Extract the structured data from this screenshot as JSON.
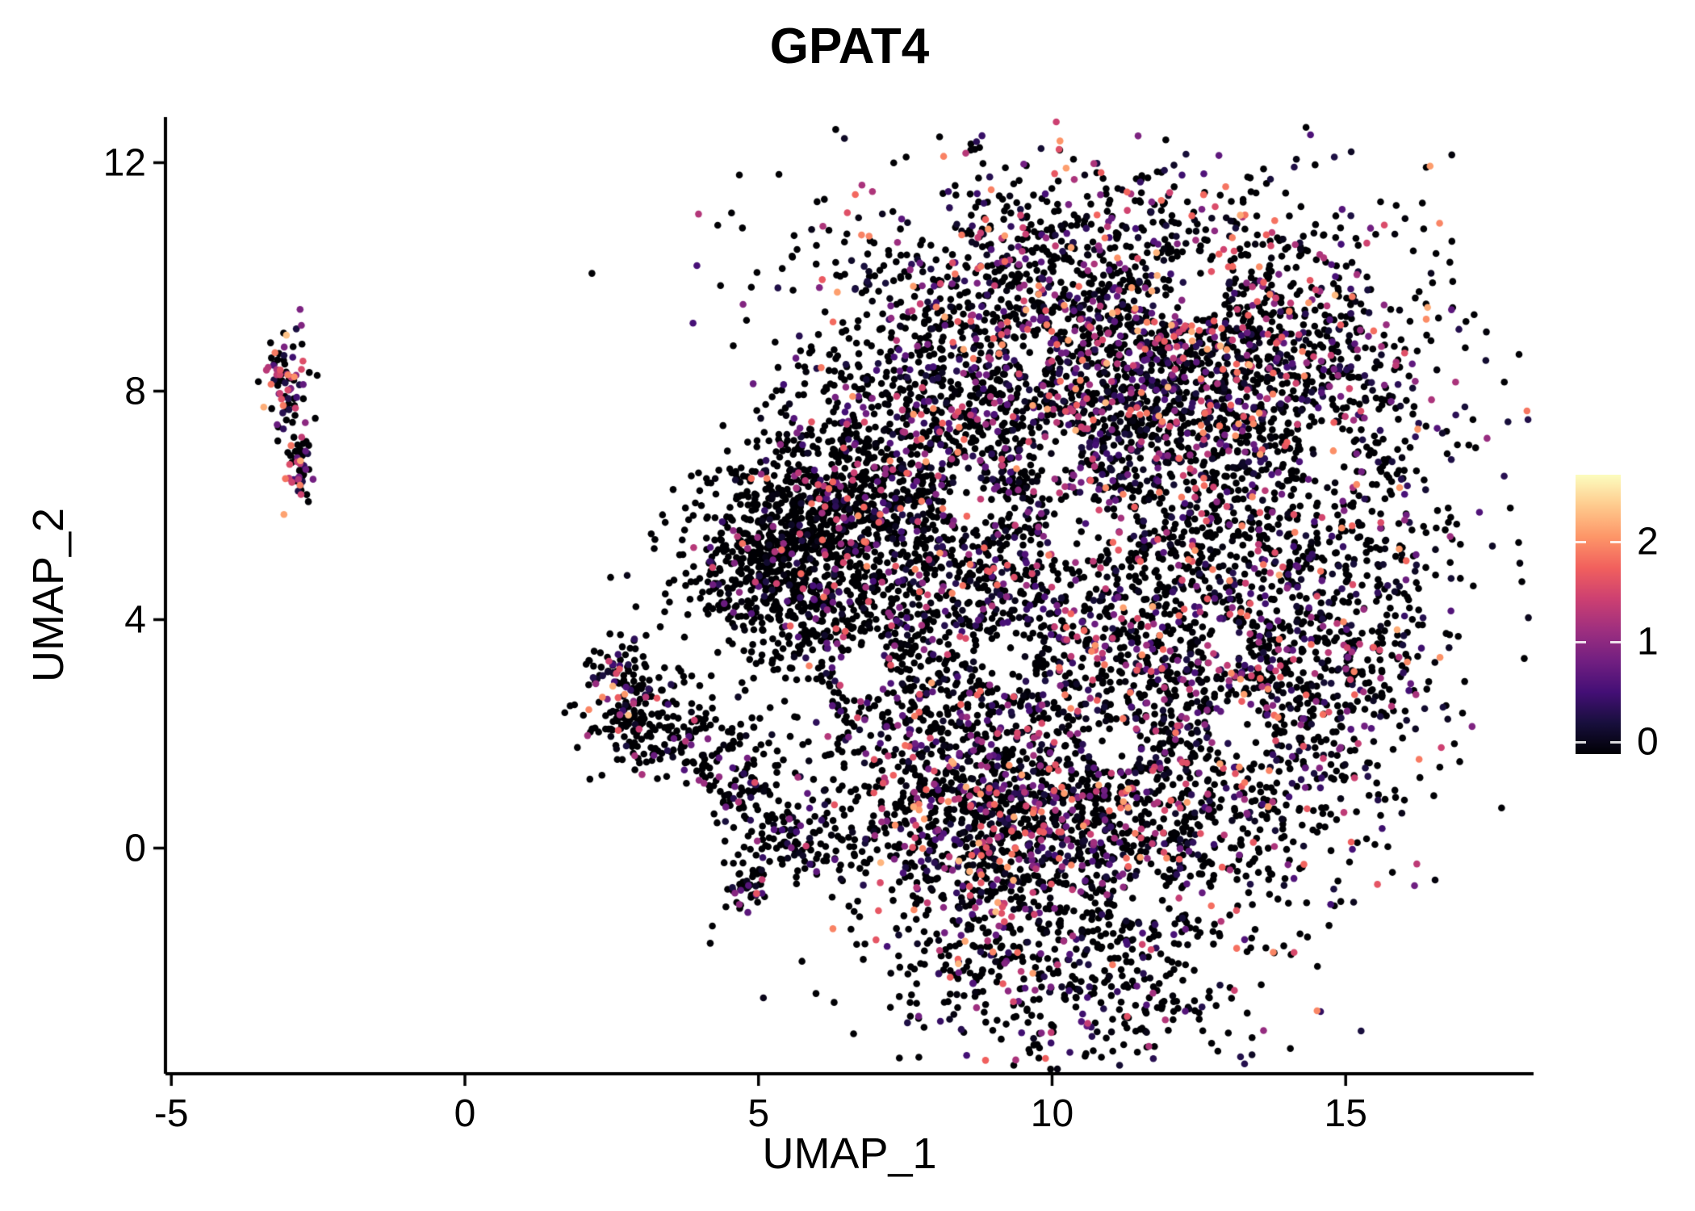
{
  "figure": {
    "background": "#ffffff",
    "axis_color": "#000000",
    "text_color": "#000000"
  },
  "chart_data": {
    "type": "scatter",
    "title": "GPAT4",
    "xlabel": "UMAP_1",
    "ylabel": "UMAP_2",
    "xlim": [
      -5.1,
      18.2
    ],
    "ylim": [
      -3.95,
      12.8
    ],
    "x_ticks": [
      -5,
      0,
      5,
      10,
      15
    ],
    "y_ticks": [
      0,
      4,
      8,
      12
    ],
    "grid": false,
    "point_radius": 4.3,
    "seed": 20240613,
    "colormap": {
      "name": "magma",
      "colors": [
        "#000004",
        "#180f3d",
        "#440f76",
        "#721f81",
        "#9e2f7f",
        "#cd4071",
        "#f1605d",
        "#fd9668",
        "#feca8d",
        "#fcfdbf"
      ]
    },
    "legend": {
      "position": "right",
      "ticks": [
        0,
        1,
        2
      ],
      "bar_vmin": -0.12,
      "bar_vmax": 2.67,
      "value_max": 2.67
    },
    "clusters": [
      {
        "name": "left-small-cluster",
        "blobs": [
          {
            "cx": -3.05,
            "cy": 8.15,
            "sx": 0.17,
            "sy": 0.42,
            "n": 80,
            "pnz": 0.5,
            "vmin": 0.3,
            "vmax": 2.4,
            "vpow": 1.4
          },
          {
            "cx": -2.82,
            "cy": 6.65,
            "sx": 0.12,
            "sy": 0.32,
            "n": 50,
            "pnz": 0.5,
            "vmin": 0.3,
            "vmax": 2.2,
            "vpow": 1.5
          }
        ]
      },
      {
        "name": "lower-left-cluster",
        "blobs": [
          {
            "cx": 2.75,
            "cy": 2.65,
            "sx": 0.42,
            "sy": 0.55,
            "n": 180,
            "pnz": 0.3,
            "vmin": 0,
            "vmax": 2.3,
            "vpow": 2.2
          },
          {
            "cx": 3.45,
            "cy": 1.9,
            "sx": 0.5,
            "sy": 0.4,
            "n": 80,
            "pnz": 0.25,
            "vmin": 0,
            "vmax": 1.8,
            "vpow": 2.4
          },
          {
            "cx": 4.35,
            "cy": 1.95,
            "sx": 0.6,
            "sy": 0.28,
            "n": 40,
            "pnz": 0.2,
            "vmin": 0,
            "vmax": 1.6,
            "vpow": 2.4
          },
          {
            "cx": 4.8,
            "cy": 1.05,
            "sx": 0.33,
            "sy": 0.27,
            "n": 70,
            "pnz": 0.3,
            "vmin": 0,
            "vmax": 1.8,
            "vpow": 2.2
          },
          {
            "cx": 5.65,
            "cy": 0.1,
            "sx": 0.55,
            "sy": 0.3,
            "n": 120,
            "pnz": 0.22,
            "vmin": 0,
            "vmax": 1.8,
            "vpow": 2.4
          },
          {
            "cx": 4.85,
            "cy": -0.6,
            "sx": 0.18,
            "sy": 0.2,
            "n": 45,
            "pnz": 0.3,
            "vmin": 0,
            "vmax": 1.8,
            "vpow": 2.0
          },
          {
            "cx": 5.3,
            "cy": 1.6,
            "sx": 1.1,
            "sy": 0.8,
            "n": 25,
            "pnz": 0.2,
            "vmin": 0,
            "vmax": 1.5,
            "vpow": 2.5
          }
        ]
      },
      {
        "name": "main-cluster",
        "blobs": [
          {
            "cx": 10.6,
            "cy": 9.7,
            "sx": 2.2,
            "sy": 1.25,
            "n": 1250,
            "pnz": 0.42,
            "vmin": 0,
            "vmax": 2.3,
            "vpow": 2.1
          },
          {
            "cx": 8.0,
            "cy": 7.5,
            "sx": 1.3,
            "sy": 1.25,
            "n": 550,
            "pnz": 0.33,
            "vmin": 0,
            "vmax": 2.1,
            "vpow": 2.3
          },
          {
            "cx": 5.35,
            "cy": 5.0,
            "sx": 0.8,
            "sy": 0.9,
            "n": 650,
            "pnz": 0.17,
            "vmin": 0,
            "vmax": 1.9,
            "vpow": 2.6
          },
          {
            "cx": 7.0,
            "cy": 4.7,
            "sx": 1.15,
            "sy": 1.6,
            "n": 600,
            "pnz": 0.25,
            "vmin": 0,
            "vmax": 2.0,
            "vpow": 2.4
          },
          {
            "cx": 9.9,
            "cy": 5.0,
            "sx": 1.7,
            "sy": 2.1,
            "n": 950,
            "pnz": 0.4,
            "vmin": 0,
            "vmax": 2.2,
            "vpow": 2.1
          },
          {
            "cx": 13.2,
            "cy": 5.4,
            "sx": 1.8,
            "sy": 2.3,
            "n": 1100,
            "pnz": 0.38,
            "vmin": 0,
            "vmax": 2.2,
            "vpow": 2.1
          },
          {
            "cx": 13.9,
            "cy": 8.2,
            "sx": 1.4,
            "sy": 1.2,
            "n": 550,
            "pnz": 0.38,
            "vmin": 0,
            "vmax": 2.1,
            "vpow": 2.1
          },
          {
            "cx": 11.3,
            "cy": 8.0,
            "sx": 1.2,
            "sy": 1.15,
            "n": 520,
            "pnz": 0.55,
            "vmin": 0,
            "vmax": 2.3,
            "vpow": 1.8
          },
          {
            "cx": 9.0,
            "cy": 0.4,
            "sx": 1.2,
            "sy": 1.0,
            "n": 750,
            "pnz": 0.45,
            "vmin": 0,
            "vmax": 2.3,
            "vpow": 1.9
          },
          {
            "cx": 11.7,
            "cy": 0.5,
            "sx": 1.7,
            "sy": 1.1,
            "n": 650,
            "pnz": 0.4,
            "vmin": 0,
            "vmax": 2.2,
            "vpow": 2.1
          },
          {
            "cx": 10.4,
            "cy": -2.0,
            "sx": 1.8,
            "sy": 0.9,
            "n": 550,
            "pnz": 0.3,
            "vmin": 0,
            "vmax": 2.0,
            "vpow": 2.3
          },
          {
            "cx": 8.4,
            "cy": 2.7,
            "sx": 1.3,
            "sy": 1.4,
            "n": 450,
            "pnz": 0.3,
            "vmin": 0,
            "vmax": 2.0,
            "vpow": 2.3
          },
          {
            "cx": 14.6,
            "cy": 3.2,
            "sx": 1.1,
            "sy": 1.4,
            "n": 400,
            "pnz": 0.35,
            "vmin": 0,
            "vmax": 2.0,
            "vpow": 2.2
          },
          {
            "cx": 6.3,
            "cy": 6.15,
            "sx": 0.8,
            "sy": 0.7,
            "n": 300,
            "pnz": 0.25,
            "vmin": 0,
            "vmax": 1.9,
            "vpow": 2.4
          },
          {
            "cx": 12.3,
            "cy": 2.9,
            "sx": 1.2,
            "sy": 1.2,
            "n": 420,
            "pnz": 0.4,
            "vmin": 0,
            "vmax": 2.1,
            "vpow": 2.1
          }
        ]
      }
    ],
    "holes": [
      {
        "x": 10.45,
        "y": 5.6,
        "r": 0.55
      },
      {
        "x": 12.35,
        "y": 9.8,
        "r": 0.6
      },
      {
        "x": 9.2,
        "y": 3.3,
        "r": 0.5
      },
      {
        "x": 13.2,
        "y": 2.0,
        "r": 0.5
      },
      {
        "x": 11.05,
        "y": 1.8,
        "r": 0.45
      },
      {
        "x": 10.1,
        "y": 7.0,
        "r": 0.4
      },
      {
        "x": 8.7,
        "y": 6.0,
        "r": 0.45
      },
      {
        "x": 6.8,
        "y": 3.1,
        "r": 0.45
      },
      {
        "x": 14.7,
        "y": 6.9,
        "r": 0.45
      },
      {
        "x": 11.6,
        "y": -0.9,
        "r": 0.4
      },
      {
        "x": 12.9,
        "y": 3.6,
        "r": 0.4
      },
      {
        "x": 9.6,
        "y": 8.6,
        "r": 0.35
      }
    ],
    "hole_strength": 0.88
  }
}
